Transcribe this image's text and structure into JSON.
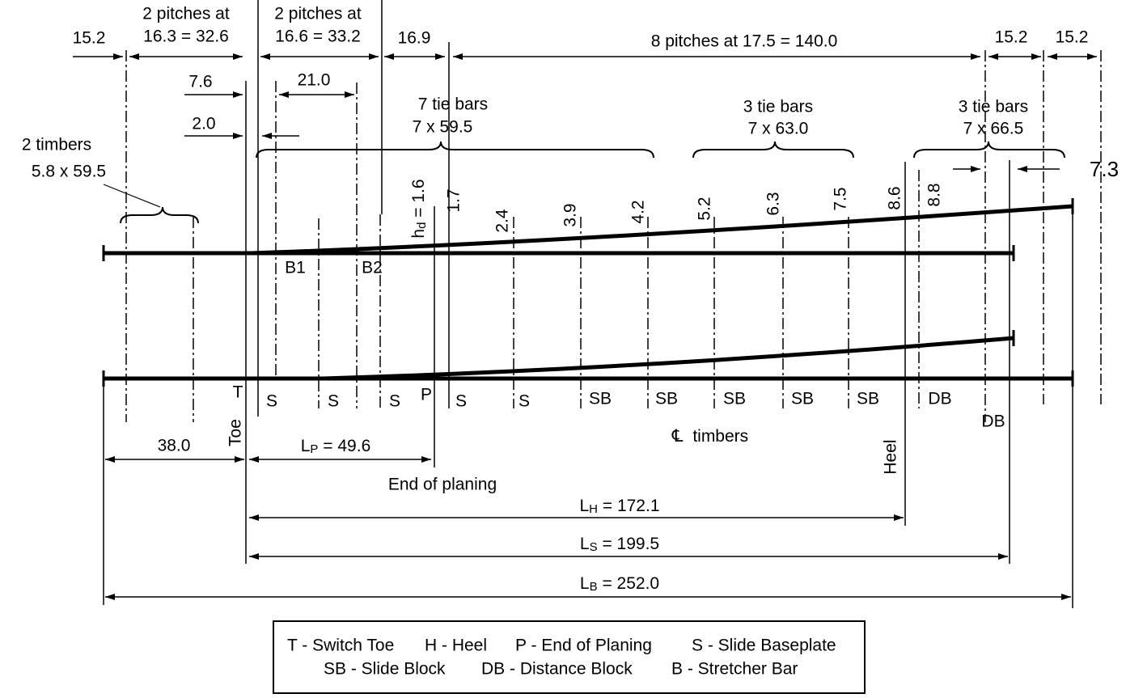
{
  "top_dimensions": {
    "toe_overhang": "15.2",
    "pitch_group_1": {
      "line1": "2 pitches at",
      "line2": "16.3 = 32.6"
    },
    "pitch_group_2": {
      "line1": "2 pitches at",
      "line2": "16.6 = 33.2"
    },
    "gap": "16.9",
    "pitch_group_3": "8 pitches at 17.5 = 140.0",
    "heel_spacing_1": "15.2",
    "heel_spacing_2": "15.2"
  },
  "offsets_top": {
    "toe_to_b1": "7.6",
    "b1_to_b2": "21.0",
    "toe_to_first": "2.0"
  },
  "tie_bars": [
    {
      "count": "7 tie bars",
      "size": "7 x 59.5"
    },
    {
      "count": "3 tie bars",
      "size": "7 x 63.0"
    },
    {
      "count": "3 tie bars",
      "size": "7 x 66.5"
    }
  ],
  "timbers": {
    "count": "2 timbers",
    "size": "5.8 x 59.5"
  },
  "heel_gap": "7.3",
  "rail_offsets": {
    "first": {
      "main": "h",
      "sub": "d",
      "rest": " = 1.6"
    },
    "others": [
      "1.7",
      "2.4",
      "3.9",
      "4.2",
      "5.2",
      "6.3",
      "7.5",
      "8.6",
      "8.8"
    ]
  },
  "stretcher_bars": [
    "B1",
    "B2"
  ],
  "positions": [
    "T",
    "S",
    "S",
    "S",
    "P",
    "S",
    "S",
    "SB",
    "SB",
    "SB",
    "SB",
    "SB",
    "DB",
    "DB"
  ],
  "toe_label": "Toe",
  "heel_label": "Heel",
  "timber_label": {
    "symbol": "℄",
    "text": "timbers"
  },
  "bottom_dimensions": {
    "toe_offset": "38.0",
    "planing": {
      "main": "L",
      "sub": "P",
      "rest": " = 49.6"
    },
    "planing_label": "End of planing",
    "heel": {
      "main": "L",
      "sub": "H",
      "rest": " = 172.1"
    },
    "switch": {
      "main": "L",
      "sub": "S",
      "rest": " = 199.5"
    },
    "overall": {
      "main": "L",
      "sub": "B",
      "rest": " = 252.0"
    }
  },
  "legend": [
    [
      "T - Switch Toe",
      "H - Heel",
      "P - End of Planing",
      "S - Slide Baseplate"
    ],
    [
      "SB - Slide Block",
      "DB - Distance Block",
      "B - Stretcher Bar"
    ]
  ]
}
